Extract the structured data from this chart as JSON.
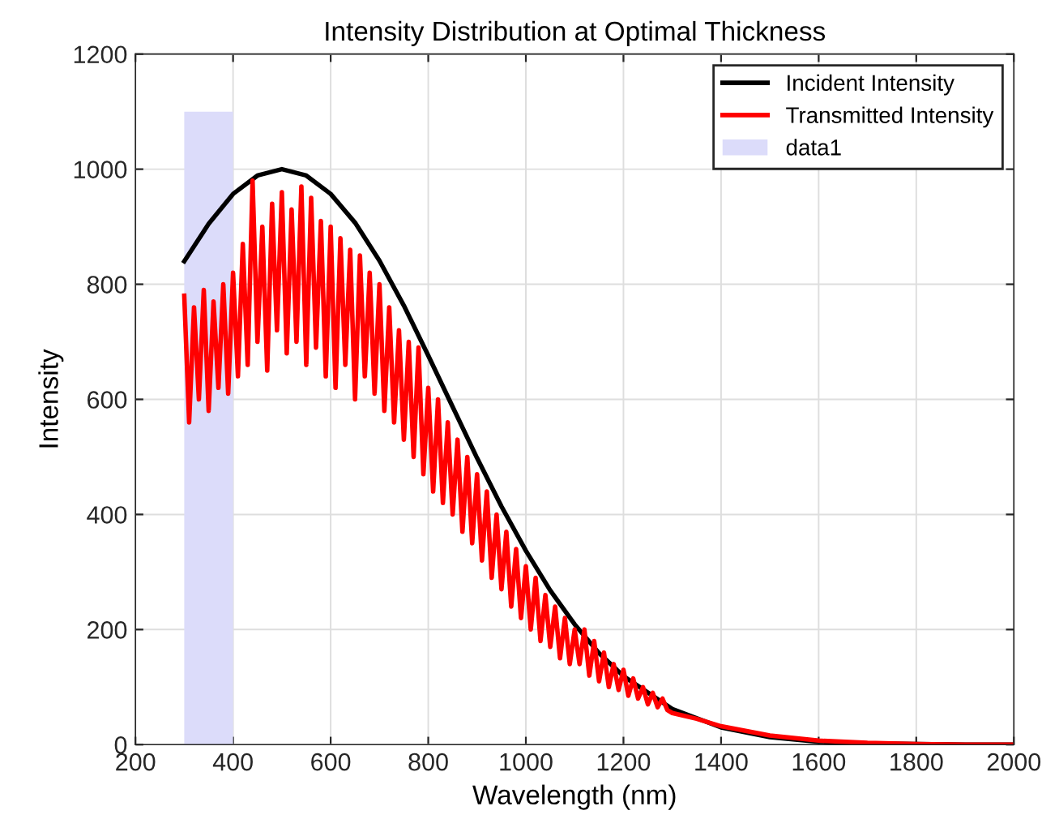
{
  "chart_data": {
    "type": "line",
    "title": "Intensity Distribution at Optimal Thickness",
    "xlabel": "Wavelength (nm)",
    "ylabel": "Intensity",
    "xlim": [
      200,
      2000
    ],
    "ylim": [
      0,
      1200
    ],
    "xticks": [
      200,
      400,
      600,
      800,
      1000,
      1200,
      1400,
      1600,
      1800,
      2000
    ],
    "yticks": [
      0,
      200,
      400,
      600,
      800,
      1000,
      1200
    ],
    "grid": true,
    "legend": "top right",
    "line_style": "solid",
    "marker": "none",
    "series": [
      {
        "name": "Incident Intensity",
        "color": "#000000",
        "x": [
          300,
          350,
          400,
          450,
          500,
          550,
          600,
          650,
          700,
          750,
          800,
          850,
          900,
          950,
          1000,
          1050,
          1100,
          1150,
          1200,
          1300,
          1400,
          1500,
          1600,
          1700,
          1800,
          1900,
          2000
        ],
        "values": [
          840,
          905,
          957,
          989,
          1000,
          989,
          957,
          907,
          841,
          763,
          676,
          587,
          498,
          414,
          337,
          268,
          209,
          159,
          119,
          62,
          30,
          13,
          5,
          2,
          1,
          0,
          0
        ]
      },
      {
        "name": "Transmitted Intensity",
        "color": "#ff0000",
        "x": [
          300,
          310,
          320,
          330,
          340,
          350,
          360,
          370,
          380,
          390,
          400,
          410,
          420,
          430,
          440,
          450,
          460,
          470,
          480,
          490,
          500,
          510,
          520,
          530,
          540,
          550,
          560,
          570,
          580,
          590,
          600,
          610,
          620,
          630,
          640,
          650,
          660,
          670,
          680,
          690,
          700,
          710,
          720,
          730,
          740,
          750,
          760,
          770,
          780,
          790,
          800,
          810,
          820,
          830,
          840,
          850,
          860,
          870,
          880,
          890,
          900,
          910,
          920,
          930,
          940,
          950,
          960,
          970,
          980,
          990,
          1000,
          1010,
          1020,
          1030,
          1040,
          1050,
          1060,
          1070,
          1080,
          1090,
          1100,
          1110,
          1120,
          1130,
          1140,
          1150,
          1160,
          1170,
          1180,
          1190,
          1200,
          1210,
          1220,
          1230,
          1240,
          1250,
          1260,
          1270,
          1280,
          1290,
          1300,
          1350,
          1400,
          1450,
          1500,
          1600,
          1700,
          1800,
          1900,
          2000
        ],
        "values": [
          780,
          560,
          760,
          600,
          790,
          580,
          770,
          620,
          800,
          610,
          820,
          640,
          870,
          660,
          980,
          700,
          900,
          650,
          940,
          720,
          960,
          680,
          930,
          700,
          970,
          660,
          950,
          690,
          910,
          640,
          900,
          620,
          880,
          660,
          860,
          600,
          850,
          640,
          820,
          610,
          800,
          580,
          760,
          560,
          720,
          530,
          700,
          500,
          690,
          470,
          620,
          440,
          600,
          420,
          560,
          400,
          530,
          370,
          500,
          350,
          470,
          320,
          440,
          290,
          400,
          270,
          370,
          240,
          340,
          220,
          310,
          200,
          290,
          180,
          260,
          170,
          240,
          150,
          220,
          140,
          200,
          140,
          200,
          120,
          180,
          110,
          160,
          100,
          140,
          95,
          130,
          85,
          115,
          80,
          100,
          70,
          90,
          65,
          80,
          60,
          55,
          45,
          32,
          24,
          16,
          7,
          3,
          1,
          0,
          0
        ]
      },
      {
        "name": "data1",
        "type": "area",
        "color": "#dcdcfa",
        "x": [
          300,
          400
        ],
        "values": [
          1100,
          1100
        ]
      }
    ]
  }
}
